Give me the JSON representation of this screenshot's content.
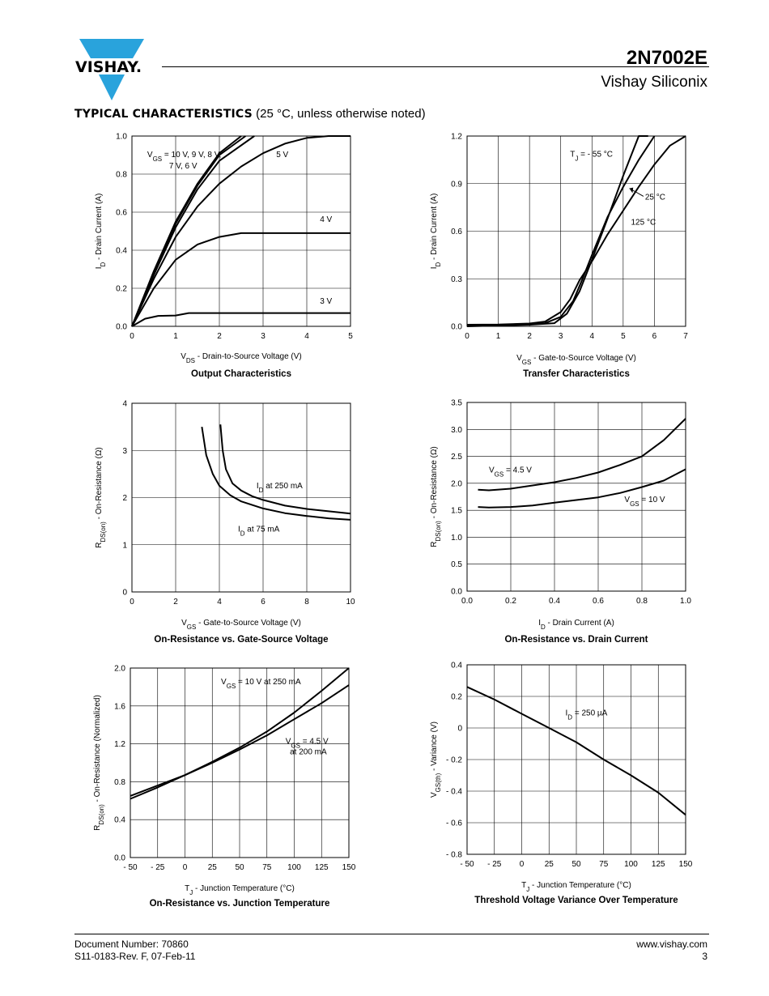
{
  "header": {
    "logo_text": "VISHAY.",
    "part_number": "2N7002E",
    "company": "Vishay Siliconix"
  },
  "section": {
    "title_bold": "TYPICAL CHARACTERISTICS",
    "title_normal": "(25 °C, unless otherwise noted)"
  },
  "chart_data": [
    {
      "id": "output",
      "type": "line",
      "title": "Output Characteristics",
      "xlabel": "VDS - Drain-to-Source Voltage (V)",
      "ylabel": "ID - Drain Current (A)",
      "xlim": [
        0,
        5
      ],
      "ylim": [
        0,
        1.0
      ],
      "xticks": [
        "0",
        "1",
        "2",
        "3",
        "4",
        "5"
      ],
      "yticks": [
        "0.0",
        "0.2",
        "0.4",
        "0.6",
        "0.8",
        "1.0"
      ],
      "grid": true,
      "series": [
        {
          "name": "VGS = 10 V, 9 V, 8 V, 7 V, 6 V (a)",
          "x": [
            0,
            0.5,
            1,
            1.5,
            2,
            2.5
          ],
          "y": [
            0,
            0.29,
            0.55,
            0.75,
            0.91,
            1.0
          ]
        },
        {
          "name": "VGS = 10 V, 9 V, 8 V, 7 V, 6 V (b)",
          "x": [
            0,
            0.5,
            1,
            1.5,
            2,
            2.6
          ],
          "y": [
            0,
            0.28,
            0.54,
            0.74,
            0.9,
            1.0
          ]
        },
        {
          "name": "VGS = 10 V, 9 V, 8 V, 7 V, 6 V (c)",
          "x": [
            0,
            0.5,
            1,
            1.5,
            2,
            2.8
          ],
          "y": [
            0,
            0.27,
            0.52,
            0.72,
            0.87,
            1.0
          ]
        },
        {
          "name": "5 V",
          "x": [
            0,
            0.5,
            1,
            1.5,
            2,
            2.5,
            3,
            3.5,
            4,
            4.5,
            5
          ],
          "y": [
            0,
            0.25,
            0.47,
            0.63,
            0.75,
            0.84,
            0.91,
            0.96,
            0.99,
            1.0,
            1.0
          ]
        },
        {
          "name": "4 V",
          "x": [
            0,
            0.5,
            1,
            1.5,
            2,
            2.5,
            3,
            4,
            5
          ],
          "y": [
            0,
            0.2,
            0.35,
            0.43,
            0.47,
            0.49,
            0.49,
            0.49,
            0.49
          ]
        },
        {
          "name": "3 V",
          "x": [
            0,
            0.3,
            0.6,
            1,
            1.3,
            2,
            3,
            4,
            5
          ],
          "y": [
            0,
            0.04,
            0.055,
            0.057,
            0.07,
            0.07,
            0.07,
            0.07,
            0.07
          ]
        }
      ],
      "labels": [
        {
          "text": "VGS = 10 V, 9 V, 8 V,",
          "sub": "GS",
          "x": 0.35,
          "y": 0.89
        },
        {
          "text": "7 V, 6 V",
          "x": 0.85,
          "y": 0.83
        },
        {
          "text": "5 V",
          "x": 3.3,
          "y": 0.89
        },
        {
          "text": "4 V",
          "x": 4.3,
          "y": 0.55
        },
        {
          "text": "3 V",
          "x": 4.3,
          "y": 0.12
        }
      ]
    },
    {
      "id": "transfer",
      "type": "line",
      "title": "Transfer Characteristics",
      "xlabel": "VGS - Gate-to-Source Voltage (V)",
      "ylabel": "ID - Drain Current (A)",
      "xlim": [
        0,
        7
      ],
      "ylim": [
        0,
        1.2
      ],
      "xticks": [
        "0",
        "1",
        "2",
        "3",
        "4",
        "5",
        "6",
        "7"
      ],
      "yticks": [
        "0.0",
        "0.3",
        "0.6",
        "0.9",
        "1.2"
      ],
      "grid": true,
      "series": [
        {
          "name": "TJ = - 55 °C",
          "x": [
            0,
            1,
            2,
            2.8,
            3.2,
            3.6,
            4,
            4.5,
            5,
            5.5,
            5.8
          ],
          "y": [
            0,
            0.005,
            0.01,
            0.02,
            0.08,
            0.22,
            0.42,
            0.68,
            0.95,
            1.2,
            1.2
          ]
        },
        {
          "name": "25 °C",
          "x": [
            0,
            1,
            2,
            2.5,
            3,
            3.4,
            3.7,
            4,
            4.5,
            5,
            5.5,
            6
          ],
          "y": [
            0.005,
            0.008,
            0.012,
            0.02,
            0.06,
            0.16,
            0.3,
            0.45,
            0.69,
            0.88,
            1.05,
            1.2
          ]
        },
        {
          "name": "125 °C",
          "x": [
            0,
            1,
            2,
            2.5,
            3,
            3.3,
            3.6,
            4,
            4.5,
            5,
            5.5,
            6,
            6.5,
            7
          ],
          "y": [
            0.01,
            0.012,
            0.018,
            0.03,
            0.09,
            0.17,
            0.29,
            0.41,
            0.58,
            0.73,
            0.88,
            1.02,
            1.14,
            1.2
          ]
        }
      ],
      "labels": [
        {
          "text": "TJ = - 55 °C",
          "sub": "J",
          "x": 3.3,
          "y": 1.07
        },
        {
          "text": "25 °C",
          "x": 5.7,
          "y": 0.8
        },
        {
          "text": "125 °C",
          "x": 5.25,
          "y": 0.64
        }
      ]
    },
    {
      "id": "ron-vgs",
      "type": "line",
      "title": "On-Resistance vs. Gate-Source Voltage",
      "xlabel": "VGS - Gate-to-Source Voltage (V)",
      "ylabel": "RDS(on) - On-Resistance (Ω)",
      "xlim": [
        0,
        10
      ],
      "ylim": [
        0,
        4
      ],
      "xticks": [
        "0",
        "2",
        "4",
        "6",
        "8",
        "10"
      ],
      "yticks": [
        "0",
        "1",
        "2",
        "3",
        "4"
      ],
      "grid": true,
      "series": [
        {
          "name": "ID at 75 mA",
          "x": [
            3.2,
            3.4,
            3.7,
            4,
            4.5,
            5,
            6,
            7,
            8,
            9,
            10
          ],
          "y": [
            3.5,
            2.9,
            2.5,
            2.25,
            2.05,
            1.92,
            1.77,
            1.67,
            1.61,
            1.56,
            1.53
          ]
        },
        {
          "name": "ID at 250 mA",
          "x": [
            4.05,
            4.15,
            4.3,
            4.6,
            5,
            5.5,
            6,
            7,
            8,
            9,
            10
          ],
          "y": [
            3.55,
            3.0,
            2.6,
            2.3,
            2.15,
            2.03,
            1.95,
            1.83,
            1.76,
            1.71,
            1.66
          ]
        }
      ],
      "labels": [
        {
          "text": "ID at 250 mA",
          "sub": "D",
          "x": 5.7,
          "y": 2.2
        },
        {
          "text": "ID at 75 mA",
          "sub": "D",
          "x": 4.85,
          "y": 1.28
        }
      ]
    },
    {
      "id": "ron-id",
      "type": "line",
      "title": "On-Resistance vs. Drain Current",
      "xlabel": "ID - Drain Current (A)",
      "ylabel": "RDS(on) - On-Resistance (Ω)",
      "xlim": [
        0,
        1.0
      ],
      "ylim": [
        0,
        3.5
      ],
      "xticks": [
        "0.0",
        "0.2",
        "0.4",
        "0.6",
        "0.8",
        "1.0"
      ],
      "yticks": [
        "0.0",
        "0.5",
        "1.0",
        "1.5",
        "2.0",
        "2.5",
        "3.0",
        "3.5"
      ],
      "grid": true,
      "series": [
        {
          "name": "VGS = 4.5 V",
          "x": [
            0.05,
            0.1,
            0.2,
            0.3,
            0.4,
            0.5,
            0.6,
            0.7,
            0.8,
            0.9,
            1.0
          ],
          "y": [
            1.88,
            1.87,
            1.9,
            1.96,
            2.02,
            2.1,
            2.2,
            2.34,
            2.5,
            2.8,
            3.2
          ]
        },
        {
          "name": "VGS = 10 V",
          "x": [
            0.05,
            0.1,
            0.2,
            0.3,
            0.4,
            0.5,
            0.6,
            0.7,
            0.8,
            0.9,
            1.0
          ],
          "y": [
            1.56,
            1.55,
            1.56,
            1.59,
            1.64,
            1.69,
            1.74,
            1.82,
            1.93,
            2.05,
            2.26
          ]
        }
      ],
      "labels": [
        {
          "text": "VGS = 4.5 V",
          "sub": "GS",
          "x": 0.1,
          "y": 2.2
        },
        {
          "text": "VGS = 10 V",
          "sub": "GS",
          "x": 0.72,
          "y": 1.65
        }
      ]
    },
    {
      "id": "ron-tj",
      "type": "line",
      "title": "On-Resistance vs. Junction Temperature",
      "xlabel": "TJ - Junction Temperature (°C)",
      "ylabel": "RDS(on) - On-Resistance (Normalized)",
      "xlim": [
        -50,
        150
      ],
      "ylim": [
        0,
        2.0
      ],
      "xticks": [
        "- 50",
        "- 25",
        "0",
        "25",
        "50",
        "75",
        "100",
        "125",
        "150"
      ],
      "yticks": [
        "0.0",
        "0.4",
        "0.8",
        "1.2",
        "1.6",
        "2.0"
      ],
      "grid": true,
      "series": [
        {
          "name": "VGS = 10 V at 250 mA",
          "x": [
            -50,
            -25,
            0,
            25,
            50,
            75,
            100,
            125,
            150
          ],
          "y": [
            0.62,
            0.74,
            0.87,
            1.01,
            1.16,
            1.33,
            1.53,
            1.76,
            2.0
          ]
        },
        {
          "name": "VGS = 4.5 V at 200 mA",
          "x": [
            -50,
            -25,
            0,
            25,
            50,
            75,
            100,
            125,
            150
          ],
          "y": [
            0.65,
            0.76,
            0.87,
            1.0,
            1.14,
            1.29,
            1.46,
            1.63,
            1.82
          ]
        }
      ],
      "labels": [
        {
          "text": "VGS = 10 V at 250 mA",
          "sub": "GS",
          "x": 33,
          "y": 1.83
        },
        {
          "text": "VGS = 4.5 V",
          "sub": "GS",
          "x": 92,
          "y": 1.2
        },
        {
          "text": "at 200 mA",
          "x": 96,
          "y": 1.09
        }
      ]
    },
    {
      "id": "vth-tj",
      "type": "line",
      "title": "Threshold Voltage Variance Over Temperature",
      "xlabel": "TJ - Junction Temperature (°C)",
      "ylabel": "VGS(th) - Variance (V)",
      "xlim": [
        -50,
        150
      ],
      "ylim": [
        -0.8,
        0.4
      ],
      "xticks": [
        "- 50",
        "- 25",
        "0",
        "25",
        "50",
        "75",
        "100",
        "125",
        "150"
      ],
      "yticks": [
        "- 0.8",
        "- 0.6",
        "- 0.4",
        "- 0.2",
        "0",
        "0.2",
        "0.4"
      ],
      "grid": true,
      "series": [
        {
          "name": "ID = 250 µA",
          "x": [
            -50,
            -25,
            0,
            25,
            50,
            75,
            100,
            125,
            150
          ],
          "y": [
            0.26,
            0.18,
            0.09,
            0.0,
            -0.09,
            -0.2,
            -0.3,
            -0.41,
            -0.55
          ]
        }
      ],
      "labels": [
        {
          "text": "ID = 250 µA",
          "sub": "D",
          "x": 40,
          "y": 0.08
        }
      ]
    }
  ],
  "footer": {
    "doc_number": "Document Number: 70860",
    "revision": "S11-0183-Rev. F, 07-Feb-11",
    "website": "www.vishay.com",
    "page": "3"
  }
}
